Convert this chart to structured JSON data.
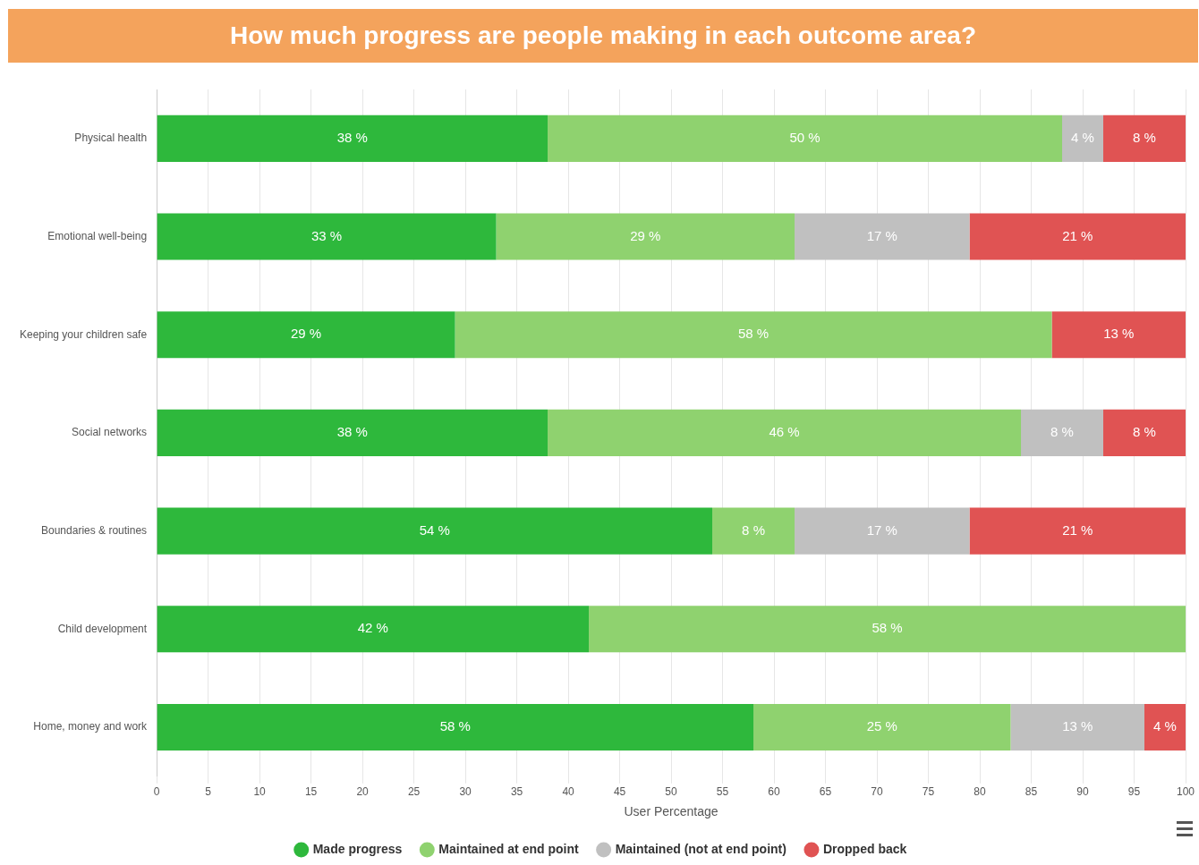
{
  "chart_data": {
    "type": "bar",
    "orientation": "horizontal",
    "stacked": true,
    "title": "How much progress are people making in each outcome area?",
    "categories": [
      "Physical health",
      "Emotional well-being",
      "Keeping your children safe",
      "Social networks",
      "Boundaries & routines",
      "Child development",
      "Home, money and work"
    ],
    "series": [
      {
        "name": "Made progress",
        "color": "#2eb83c",
        "values": [
          38,
          33,
          29,
          38,
          54,
          42,
          58
        ],
        "value_labels": [
          "38 %",
          "33 %",
          "29 %",
          "38 %",
          "54 %",
          "42 %",
          "58 %"
        ]
      },
      {
        "name": "Maintained at end point",
        "color": "#8fd26f",
        "values": [
          50,
          29,
          58,
          46,
          8,
          58,
          25
        ],
        "value_labels": [
          "50 %",
          "29 %",
          "58 %",
          "46 %",
          "8 %",
          "58 %",
          "25 %"
        ]
      },
      {
        "name": "Maintained (not at end point)",
        "color": "#c0c0c0",
        "values": [
          4,
          17,
          null,
          8,
          17,
          null,
          13
        ],
        "value_labels": [
          "4 %",
          "17 %",
          null,
          "8 %",
          "17 %",
          null,
          "13 %"
        ]
      },
      {
        "name": "Dropped back",
        "color": "#e05353",
        "values": [
          8,
          21,
          13,
          8,
          21,
          null,
          4
        ],
        "value_labels": [
          "8 %",
          "21 %",
          "13 %",
          "8 %",
          "21 %",
          null,
          "4 %"
        ]
      }
    ],
    "xlabel": "User Percentage",
    "xlim": [
      0,
      100
    ],
    "xticks": [
      0,
      5,
      10,
      15,
      20,
      25,
      30,
      35,
      40,
      45,
      50,
      55,
      60,
      65,
      70,
      75,
      80,
      85,
      90,
      95,
      100
    ],
    "grid": "x",
    "legend": "bottom"
  }
}
